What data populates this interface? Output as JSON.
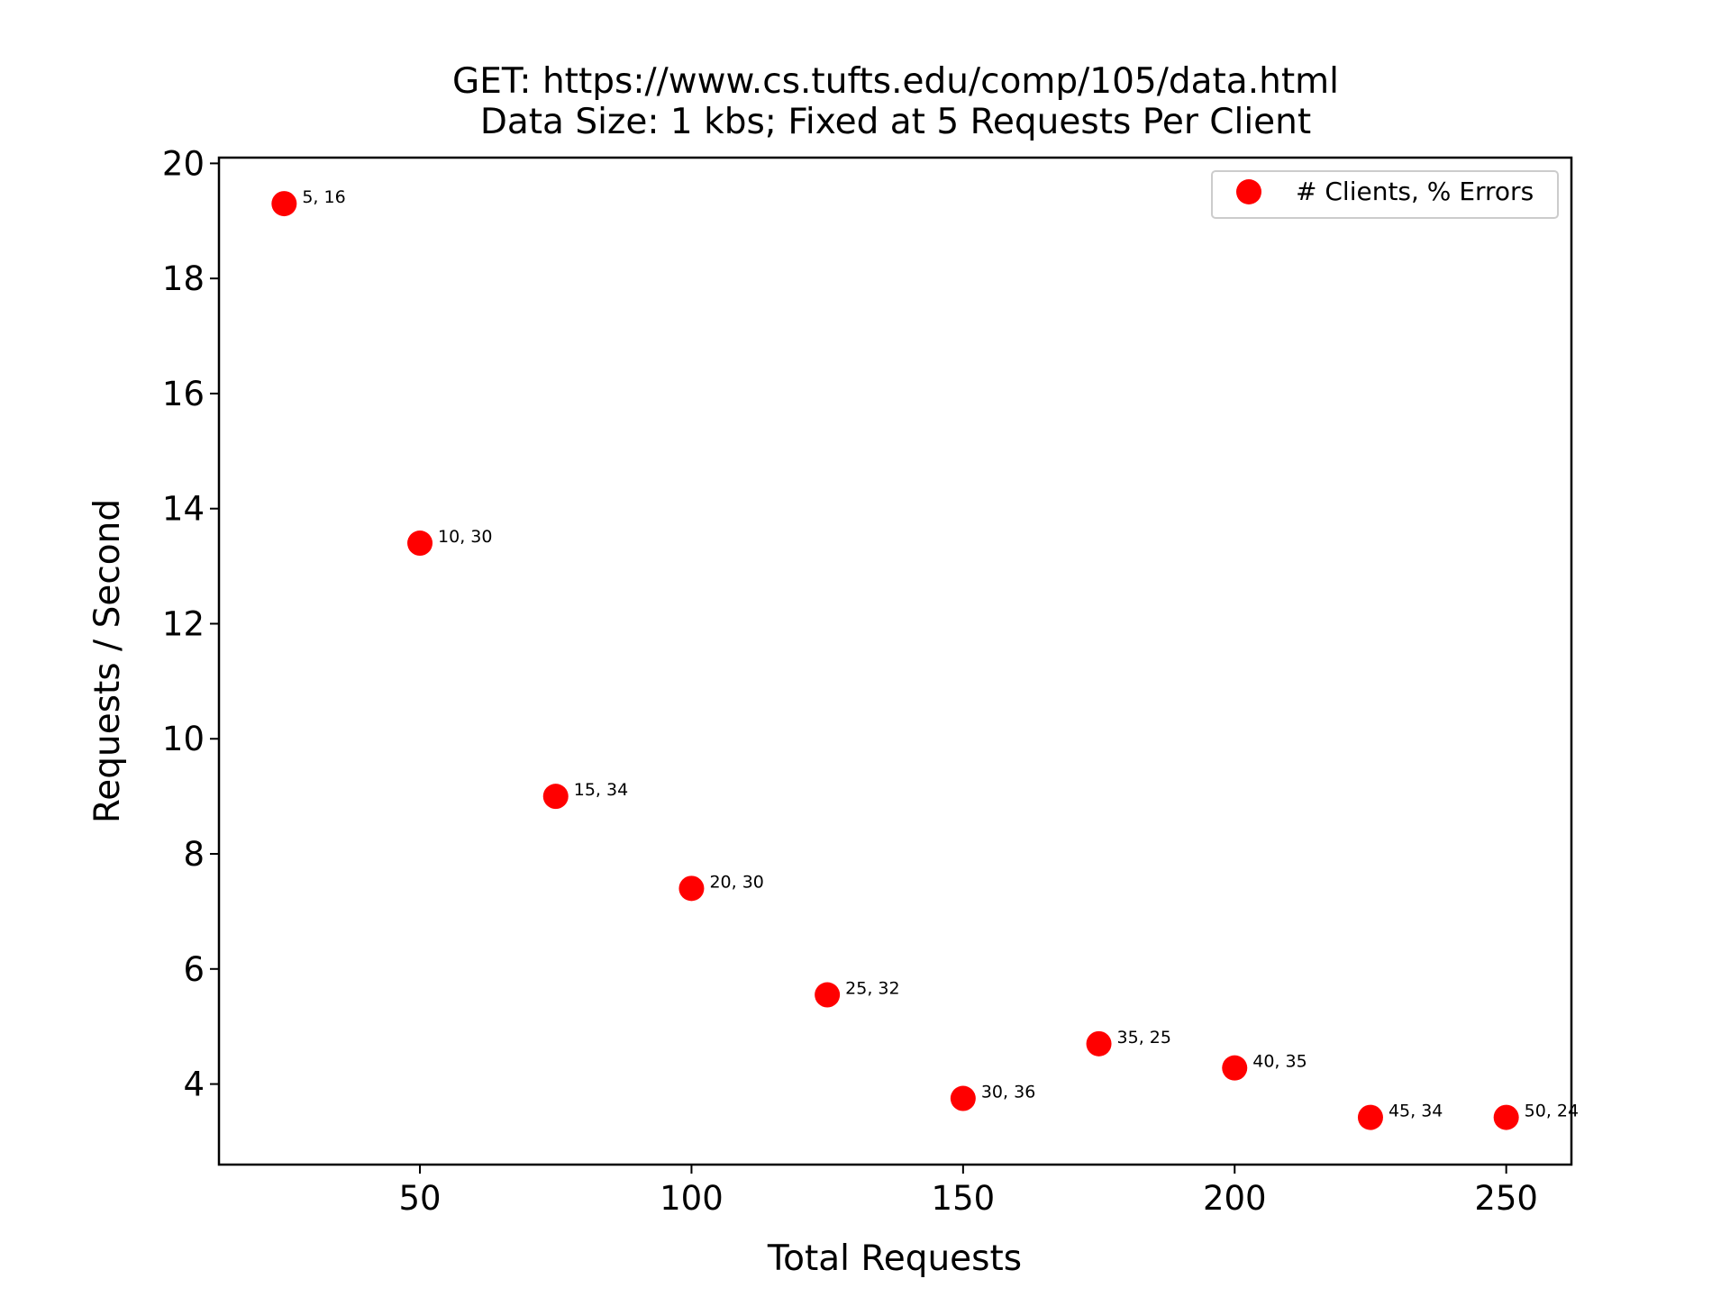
{
  "chart_data": {
    "type": "scatter",
    "title": "GET: https://www.cs.tufts.edu/comp/105/data.html",
    "subtitle": "Data Size: 1 kbs; Fixed at 5 Requests Per Client",
    "xlabel": "Total Requests",
    "ylabel": "Requests / Second",
    "xlim": [
      13,
      262
    ],
    "ylim": [
      2.6,
      20.1
    ],
    "xticks": [
      50,
      100,
      150,
      200,
      250
    ],
    "yticks": [
      4,
      6,
      8,
      10,
      12,
      14,
      16,
      18,
      20
    ],
    "grid": false,
    "legend_position": "top-right",
    "series": [
      {
        "name": "# Clients, % Errors",
        "color": "#ff0000",
        "points": [
          {
            "x": 25,
            "y": 19.3,
            "label": "5, 16"
          },
          {
            "x": 50,
            "y": 13.4,
            "label": "10, 30"
          },
          {
            "x": 75,
            "y": 9.0,
            "label": "15, 34"
          },
          {
            "x": 100,
            "y": 7.4,
            "label": "20, 30"
          },
          {
            "x": 125,
            "y": 5.55,
            "label": "25, 32"
          },
          {
            "x": 150,
            "y": 3.75,
            "label": "30, 36"
          },
          {
            "x": 175,
            "y": 4.7,
            "label": "35, 25"
          },
          {
            "x": 200,
            "y": 4.28,
            "label": "40, 35"
          },
          {
            "x": 225,
            "y": 3.42,
            "label": "45, 34"
          },
          {
            "x": 250,
            "y": 3.42,
            "label": "50, 24"
          }
        ]
      }
    ]
  }
}
